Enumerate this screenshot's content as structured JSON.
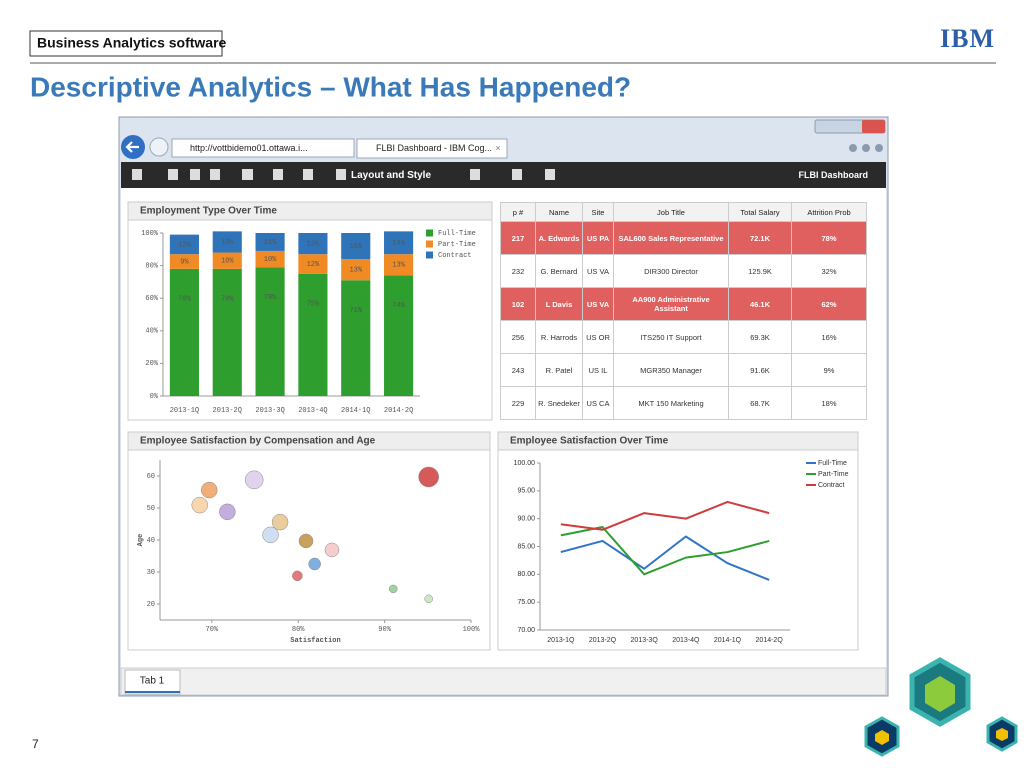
{
  "header": {
    "product": "Business Analytics software",
    "logo": "IBM",
    "title": "Descriptive Analytics – What Has Happened?",
    "page_number": "7"
  },
  "browser": {
    "address": "http://vottbidemo01.ottawa.i...",
    "tab": "FLBI Dashboard - IBM Cog...",
    "toolbar": {
      "layout": "Layout and Style",
      "dashboard": "FLBI Dashboard"
    },
    "tabs": [
      "Tab 1"
    ]
  },
  "chart_data": [
    {
      "type": "bar",
      "stacked": true,
      "title": "Employment Type Over Time",
      "categories": [
        "2013-1Q",
        "2013-2Q",
        "2013-3Q",
        "2013-4Q",
        "2014-1Q",
        "2014-2Q"
      ],
      "series": [
        {
          "name": "Full-Time",
          "color": "#2e9e2e",
          "values": [
            78,
            78,
            79,
            75,
            71,
            74
          ],
          "value_labels": [
            "78%",
            "78%",
            "79%",
            "75%",
            "71%",
            "74%"
          ]
        },
        {
          "name": "Part-Time",
          "color": "#f08a24",
          "values": [
            9,
            10,
            10,
            12,
            13,
            13
          ],
          "value_labels": [
            "9%",
            "10%",
            "10%",
            "12%",
            "13%",
            "13%"
          ]
        },
        {
          "name": "Contract",
          "color": "#2f74b8",
          "values": [
            12,
            13,
            11,
            13,
            16,
            14
          ],
          "value_labels": [
            "12%",
            "13%",
            "11%",
            "13%",
            "16%",
            "14%"
          ]
        }
      ],
      "ylim": [
        0,
        100
      ],
      "yticks": [
        {
          "value": 0,
          "label": "0%"
        },
        {
          "value": 20,
          "label": "20%"
        },
        {
          "value": 40,
          "label": "40%"
        },
        {
          "value": 60,
          "label": "60%"
        },
        {
          "value": 80,
          "label": "80%"
        },
        {
          "value": 100,
          "label": "100%"
        }
      ],
      "legend": "right"
    },
    {
      "type": "bubble",
      "title": "Employee Satisfaction by Compensation and Age",
      "xlabel": "Satisfaction",
      "ylabel": "Age",
      "x": [
        69.7,
        68.6,
        71.8,
        74.9,
        77.9,
        76.8,
        80.9,
        83.9,
        81.9,
        79.9,
        91,
        95.1,
        95.1
      ],
      "values": [
        55.6,
        50.9,
        48.8,
        58.8,
        45.6,
        41.6,
        39.7,
        36.9,
        32.5,
        28.8,
        24.7,
        21.6,
        59.7
      ],
      "sizes": [
        8,
        8,
        8,
        9,
        8,
        8,
        7,
        7,
        6,
        5,
        4,
        4,
        10
      ],
      "colors": [
        "#f0a060",
        "#f8d0a0",
        "#b8a0d8",
        "#dccbe8",
        "#e8c48c",
        "#c8d8f0",
        "#c09040",
        "#f4c4c4",
        "#6aa0d8",
        "#e06060",
        "#90c890",
        "#c0e4b8",
        "#d03c3c"
      ],
      "xlim": [
        64,
        100
      ],
      "ylim": [
        15,
        65
      ],
      "xticks": [
        {
          "value": 70,
          "label": "70%"
        },
        {
          "value": 80,
          "label": "80%"
        },
        {
          "value": 90,
          "label": "90%"
        },
        {
          "value": 100,
          "label": "100%"
        }
      ],
      "yticks": [
        20,
        30,
        40,
        50,
        60
      ]
    },
    {
      "type": "line",
      "title": "Employee Satisfaction Over Time",
      "categories": [
        "2013-1Q",
        "2013-2Q",
        "2013-3Q",
        "2013-4Q",
        "2014-1Q",
        "2014-2Q"
      ],
      "series": [
        {
          "name": "Full-Time",
          "color": "#2f74c8",
          "values": [
            84,
            86,
            81,
            86.8,
            82,
            79
          ]
        },
        {
          "name": "Part-Time",
          "color": "#2e9e2e",
          "values": [
            87,
            88.5,
            80,
            83,
            84,
            86
          ]
        },
        {
          "name": "Contract",
          "color": "#d03c3c",
          "values": [
            89,
            88,
            91,
            90,
            93,
            91
          ]
        }
      ],
      "ylim": [
        70,
        100
      ],
      "yticks": [
        {
          "value": 70,
          "label": "70.00"
        },
        {
          "value": 75,
          "label": "75.00"
        },
        {
          "value": 80,
          "label": "80.00"
        },
        {
          "value": 85,
          "label": "85.00"
        },
        {
          "value": 90,
          "label": "90.00"
        },
        {
          "value": 95,
          "label": "95.00"
        },
        {
          "value": 100,
          "label": "100.00"
        }
      ],
      "legend": "top-right"
    }
  ],
  "table": {
    "columns": [
      "p #",
      "Name",
      "Site",
      "Job Title",
      "Total Salary",
      "Attrition Prob"
    ],
    "highlight_color": "#e0605f",
    "rows": [
      {
        "cells": [
          "217",
          "A. Edwards",
          "US PA",
          "SAL600 Sales Representative",
          "72.1K",
          "78%"
        ],
        "highlight": true
      },
      {
        "cells": [
          "232",
          "G. Bernard",
          "US VA",
          "DIR300 Director",
          "125.9K",
          "32%"
        ],
        "highlight": false
      },
      {
        "cells": [
          "102",
          "L Davis",
          "US VA",
          "AA900 Administrative Assistant",
          "46.1K",
          "62%"
        ],
        "highlight": true
      },
      {
        "cells": [
          "256",
          "R. Harrods",
          "US OR",
          "ITS250 IT Support",
          "69.3K",
          "16%"
        ],
        "highlight": false
      },
      {
        "cells": [
          "243",
          "R. Patel",
          "US IL",
          "MGR350 Manager",
          "91.6K",
          "9%"
        ],
        "highlight": false
      },
      {
        "cells": [
          "229",
          "R. Snedeker",
          "US CA",
          "MKT 150 Marketing",
          "68.7K",
          "18%"
        ],
        "highlight": false
      }
    ]
  }
}
